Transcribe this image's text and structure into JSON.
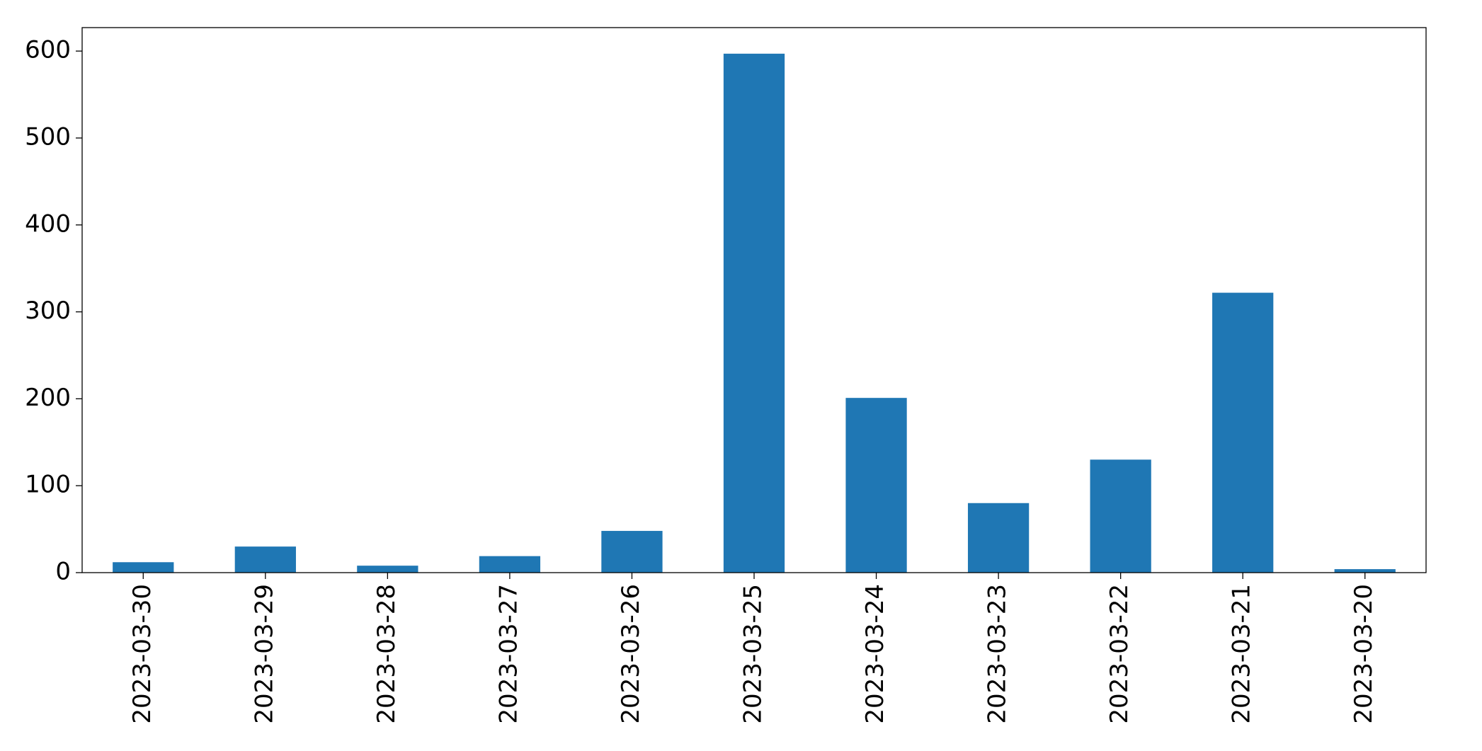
{
  "chart_data": {
    "type": "bar",
    "categories": [
      "2023-03-30",
      "2023-03-29",
      "2023-03-28",
      "2023-03-27",
      "2023-03-26",
      "2023-03-25",
      "2023-03-24",
      "2023-03-23",
      "2023-03-22",
      "2023-03-21",
      "2023-03-20"
    ],
    "values": [
      12,
      30,
      8,
      19,
      48,
      597,
      201,
      80,
      130,
      322,
      4
    ],
    "color": "#1f77b4",
    "ylim": [
      0,
      627
    ],
    "yticks": [
      0,
      100,
      200,
      300,
      400,
      500,
      600
    ],
    "grid": false
  }
}
